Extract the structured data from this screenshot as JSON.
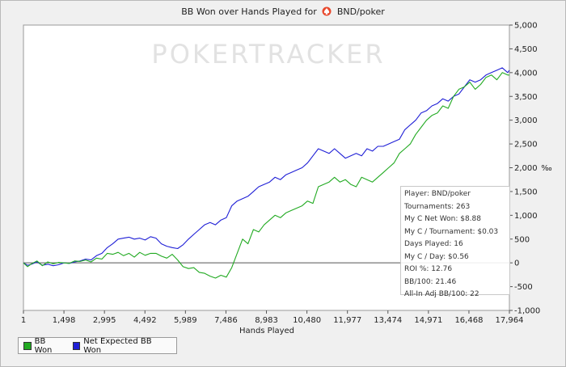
{
  "title": {
    "prefix": "BB Won over Hands Played for",
    "player": "BND/poker",
    "icon": "pokerstars-spade-icon"
  },
  "watermark": "POKERTRACKER",
  "colors": {
    "bb_won": "#22aa22",
    "net_expected": "#1f1fd6",
    "plot_bg": "#ffffff",
    "zero_line": "#555555"
  },
  "stats": [
    "Player: BND/poker",
    "Tournaments: 263",
    "My C Net Won: $8.88",
    "My C / Tournament: $0.03",
    "Days Played: 16",
    "My C / Day: $0.56",
    "ROI %: 12.76",
    "BB/100: 21.46",
    "All-In Adj BB/100: 22"
  ],
  "chart_data": {
    "type": "line",
    "title": "BB Won over Hands Played for BND/poker",
    "xlabel": "Hands Played",
    "ylabel": "",
    "y_unit_symbol": "‰",
    "xlim": [
      1,
      17964
    ],
    "ylim": [
      -1000,
      5000
    ],
    "x_ticks": [
      "1",
      "1,498",
      "2,995",
      "4,492",
      "5,989",
      "7,486",
      "8,983",
      "10,480",
      "11,977",
      "13,474",
      "14,971",
      "16,468",
      "17,964"
    ],
    "x_tick_values": [
      1,
      1498,
      2995,
      4492,
      5989,
      7486,
      8983,
      10480,
      11977,
      13474,
      14971,
      16468,
      17964
    ],
    "y_ticks": [
      "5,000",
      "4,500",
      "4,000",
      "3,500",
      "3,000",
      "2,500",
      "2,000",
      "1,500",
      "1,000",
      "500",
      "0",
      "-500",
      "-1,000"
    ],
    "y_tick_values": [
      5000,
      4500,
      4000,
      3500,
      3000,
      2500,
      2000,
      1500,
      1000,
      500,
      0,
      -500,
      -1000
    ],
    "legend": "bottom-left",
    "grid": false,
    "series": [
      {
        "name": "BB Won",
        "color": "#22aa22",
        "x": [
          1,
          150,
          300,
          500,
          700,
          900,
          1100,
          1300,
          1500,
          1700,
          1900,
          2100,
          2300,
          2500,
          2700,
          2900,
          3100,
          3300,
          3500,
          3700,
          3900,
          4100,
          4300,
          4500,
          4700,
          4900,
          5100,
          5300,
          5500,
          5700,
          5900,
          6100,
          6300,
          6500,
          6700,
          6900,
          7100,
          7300,
          7500,
          7700,
          7900,
          8100,
          8300,
          8500,
          8700,
          8900,
          9100,
          9300,
          9500,
          9700,
          9900,
          10100,
          10300,
          10500,
          10700,
          10900,
          11100,
          11300,
          11500,
          11700,
          11900,
          12100,
          12300,
          12500,
          12700,
          12900,
          13100,
          13300,
          13500,
          13700,
          13900,
          14100,
          14300,
          14500,
          14700,
          14900,
          15100,
          15300,
          15500,
          15700,
          15900,
          16100,
          16300,
          16500,
          16700,
          16900,
          17100,
          17300,
          17500,
          17700,
          17900,
          17964
        ],
        "y": [
          0,
          -80,
          -20,
          40,
          -60,
          20,
          -20,
          10,
          0,
          -10,
          40,
          30,
          60,
          20,
          100,
          80,
          200,
          180,
          220,
          150,
          200,
          120,
          220,
          160,
          200,
          200,
          140,
          100,
          180,
          60,
          -80,
          -120,
          -100,
          -200,
          -220,
          -280,
          -320,
          -260,
          -300,
          -100,
          200,
          500,
          400,
          700,
          650,
          800,
          900,
          1000,
          950,
          1050,
          1100,
          1150,
          1200,
          1300,
          1250,
          1600,
          1650,
          1700,
          1800,
          1700,
          1750,
          1650,
          1600,
          1800,
          1750,
          1700,
          1800,
          1900,
          2000,
          2100,
          2300,
          2400,
          2500,
          2700,
          2850,
          3000,
          3100,
          3150,
          3300,
          3250,
          3500,
          3650,
          3700,
          3800,
          3650,
          3750,
          3900,
          3950,
          3850,
          4000,
          3950,
          3950
        ]
      },
      {
        "name": "Net Expected BB Won",
        "color": "#1f1fd6",
        "x": [
          1,
          150,
          300,
          500,
          700,
          900,
          1100,
          1300,
          1500,
          1700,
          1900,
          2100,
          2300,
          2500,
          2700,
          2900,
          3100,
          3300,
          3500,
          3700,
          3900,
          4100,
          4300,
          4500,
          4700,
          4900,
          5100,
          5300,
          5500,
          5700,
          5900,
          6100,
          6300,
          6500,
          6700,
          6900,
          7100,
          7300,
          7500,
          7700,
          7900,
          8100,
          8300,
          8500,
          8700,
          8900,
          9100,
          9300,
          9500,
          9700,
          9900,
          10100,
          10300,
          10500,
          10700,
          10900,
          11100,
          11300,
          11500,
          11700,
          11900,
          12100,
          12300,
          12500,
          12700,
          12900,
          13100,
          13300,
          13500,
          13700,
          13900,
          14100,
          14300,
          14500,
          14700,
          14900,
          15100,
          15300,
          15500,
          15700,
          15900,
          16100,
          16300,
          16500,
          16700,
          16900,
          17100,
          17300,
          17500,
          17700,
          17900,
          17964
        ],
        "y": [
          0,
          -50,
          -30,
          20,
          -50,
          -30,
          -60,
          -40,
          0,
          -10,
          20,
          40,
          80,
          60,
          150,
          200,
          320,
          400,
          500,
          520,
          540,
          500,
          520,
          480,
          550,
          520,
          400,
          350,
          320,
          300,
          380,
          500,
          600,
          700,
          800,
          850,
          800,
          900,
          950,
          1200,
          1300,
          1350,
          1400,
          1500,
          1600,
          1650,
          1700,
          1800,
          1750,
          1850,
          1900,
          1950,
          2000,
          2100,
          2250,
          2400,
          2350,
          2300,
          2400,
          2300,
          2200,
          2250,
          2300,
          2250,
          2400,
          2350,
          2450,
          2450,
          2500,
          2550,
          2600,
          2800,
          2900,
          3000,
          3150,
          3200,
          3300,
          3350,
          3450,
          3400,
          3500,
          3550,
          3700,
          3850,
          3800,
          3850,
          3950,
          4000,
          4050,
          4100,
          4000,
          4050
        ]
      }
    ]
  }
}
